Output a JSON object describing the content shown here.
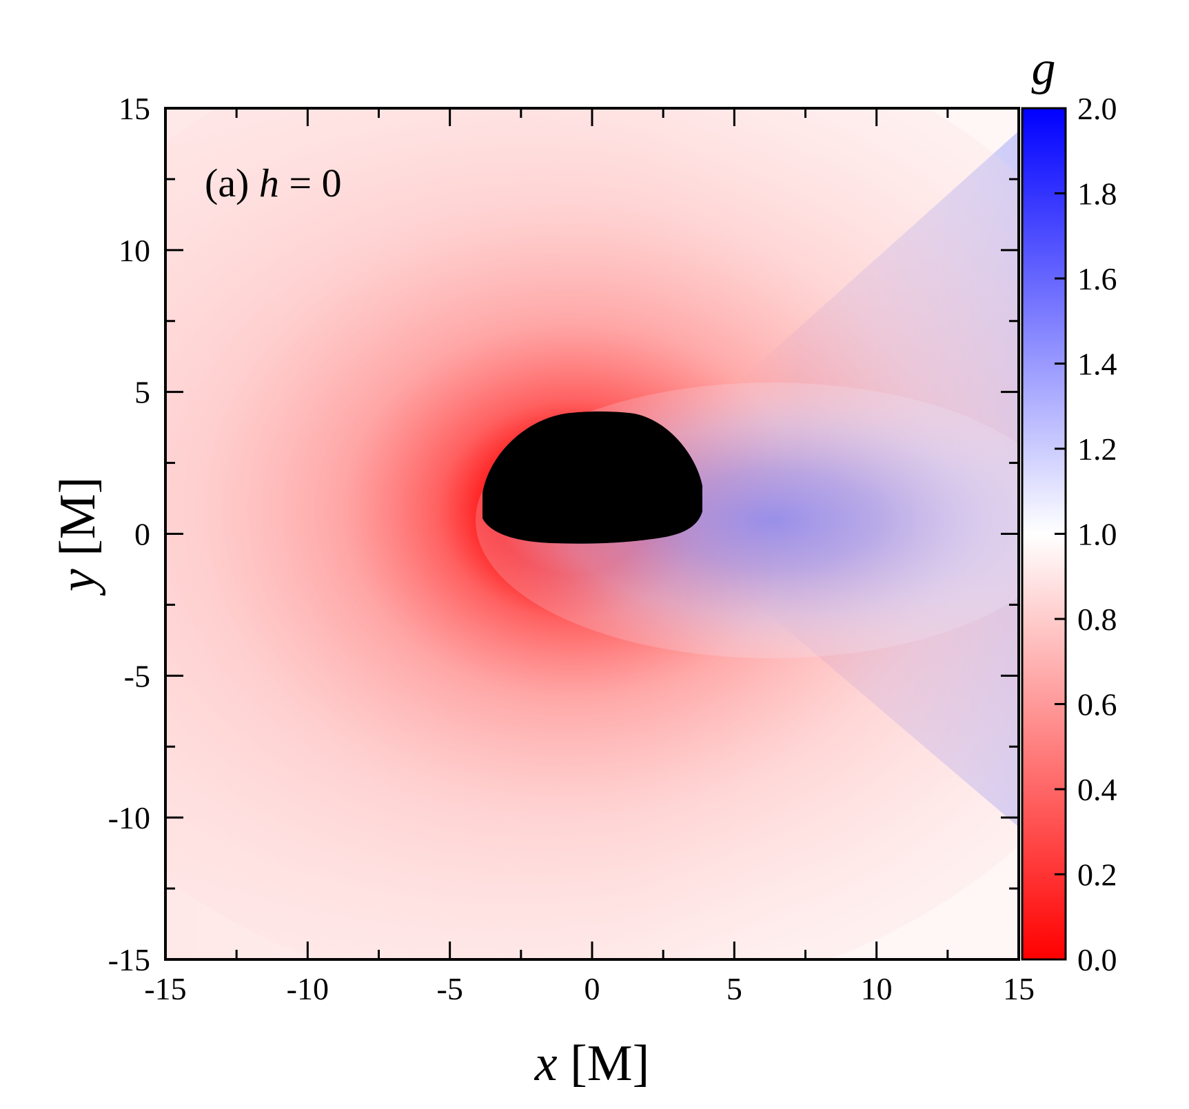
{
  "chart_data": {
    "type": "heatmap",
    "panel_label_prefix": "(a) ",
    "panel_label_var": "h",
    "panel_label_suffix": " = 0",
    "xlabel_var": "x",
    "xlabel_unit": " [M]",
    "ylabel_var": "y",
    "ylabel_unit": " [M]",
    "xlim": [
      -15,
      15
    ],
    "ylim": [
      -15,
      15
    ],
    "x_ticks": [
      -15,
      -10,
      -5,
      0,
      5,
      10,
      15
    ],
    "y_ticks": [
      -15,
      -10,
      -5,
      0,
      5,
      10,
      15
    ],
    "colorbar": {
      "title": "g",
      "range": [
        0.0,
        2.0
      ],
      "ticks": [
        "0.0",
        "0.2",
        "0.4",
        "0.6",
        "0.8",
        "1.0",
        "1.2",
        "1.4",
        "1.6",
        "1.8",
        "2.0"
      ],
      "color_low": "#ff0000",
      "color_mid": "#ffffff",
      "color_high": "#0000ff"
    },
    "shadow_color": "#000000",
    "shadow_extent": {
      "x": [
        -3.9,
        3.9
      ],
      "y": [
        -0.4,
        4.3
      ]
    },
    "field_features": {
      "redshift_peak_region": {
        "x": -0.5,
        "y": 1.5,
        "g_min": 0.0
      },
      "blueshift_peak_region": {
        "x": 7.0,
        "y": 0.6,
        "g_max": 1.25
      },
      "far_field_g": 0.95
    }
  }
}
